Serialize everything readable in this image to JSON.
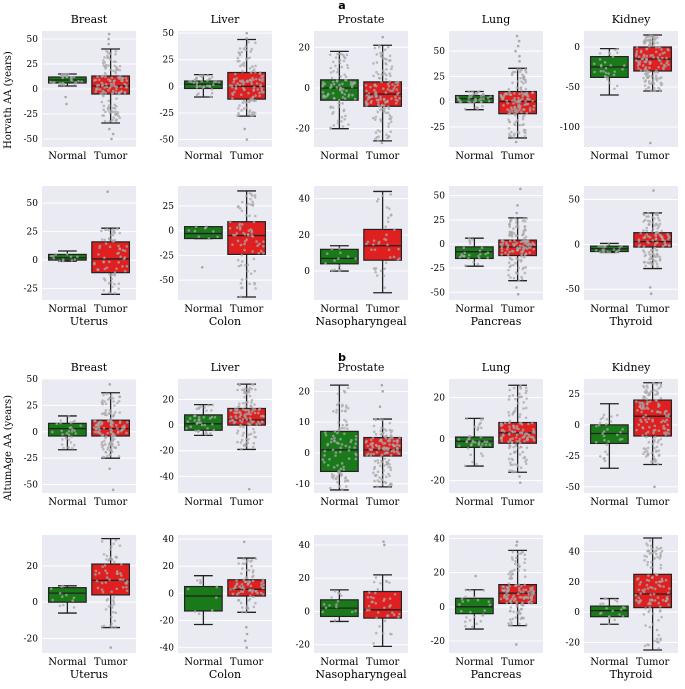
{
  "figure": {
    "label_a": "a",
    "label_b": "b",
    "ylabel_a": "Horvath AA (years)",
    "ylabel_b": "AltumAge AA (years)",
    "colors": {
      "normal": "#1a7a1a",
      "tumor": "#e02020",
      "background": "#eaeaf2",
      "grid": "#ffffff",
      "points": "#a8a8a8"
    }
  },
  "chart_data": [
    {
      "type": "box",
      "section": "a",
      "title": "Breast",
      "title_pos": "top",
      "categories": [
        "Normal",
        "Tumor"
      ],
      "ylim": [
        -58,
        58
      ],
      "yticks": [
        -50,
        -25,
        0,
        25,
        50
      ],
      "series": [
        {
          "name": "Normal",
          "q1": 6,
          "median": 9,
          "q3": 12,
          "whisker_low": 3,
          "whisker_high": 15,
          "n": 30,
          "outliers": [
            -15,
            -8
          ]
        },
        {
          "name": "Tumor",
          "q1": -5,
          "median": 3,
          "q3": 13,
          "whisker_low": -34,
          "whisker_high": 40,
          "n": 300,
          "outliers": [
            -50,
            -45,
            -40,
            45,
            50,
            55
          ]
        }
      ]
    },
    {
      "type": "box",
      "section": "a",
      "title": "Liver",
      "title_pos": "top",
      "categories": [
        "Normal",
        "Tumor"
      ],
      "ylim": [
        -57,
        52
      ],
      "yticks": [
        -50,
        -25,
        0,
        25,
        50
      ],
      "series": [
        {
          "name": "Normal",
          "q1": -2,
          "median": 2,
          "q3": 5,
          "whisker_low": -10,
          "whisker_high": 11,
          "n": 40,
          "outliers": []
        },
        {
          "name": "Tumor",
          "q1": -12,
          "median": 0,
          "q3": 13,
          "whisker_low": -28,
          "whisker_high": 44,
          "n": 120,
          "outliers": [
            -50,
            -40,
            45,
            50
          ]
        }
      ]
    },
    {
      "type": "box",
      "section": "a",
      "title": "Prostate",
      "title_pos": "top",
      "categories": [
        "Normal",
        "Tumor"
      ],
      "ylim": [
        -29,
        28
      ],
      "yticks": [
        -20,
        0,
        20
      ],
      "series": [
        {
          "name": "Normal",
          "q1": -6,
          "median": 0,
          "q3": 4,
          "whisker_low": -20,
          "whisker_high": 18,
          "n": 100,
          "outliers": []
        },
        {
          "name": "Tumor",
          "q1": -9,
          "median": -3,
          "q3": 3,
          "whisker_low": -26,
          "whisker_high": 21,
          "n": 150,
          "outliers": [
            -27,
            25
          ]
        }
      ]
    },
    {
      "type": "box",
      "section": "a",
      "title": "Lung",
      "title_pos": "top",
      "categories": [
        "Normal",
        "Tumor"
      ],
      "ylim": [
        -45,
        70
      ],
      "yticks": [
        -25,
        0,
        25,
        50
      ],
      "series": [
        {
          "name": "Normal",
          "q1": -1,
          "median": 3,
          "q3": 6,
          "whisker_low": -8,
          "whisker_high": 10,
          "n": 40,
          "outliers": []
        },
        {
          "name": "Tumor",
          "q1": -12,
          "median": 0,
          "q3": 10,
          "whisker_low": -36,
          "whisker_high": 33,
          "n": 200,
          "outliers": [
            -40,
            40,
            45,
            50,
            55,
            60,
            65
          ]
        }
      ]
    },
    {
      "type": "box",
      "section": "a",
      "title": "Kidney",
      "title_pos": "top",
      "categories": [
        "Normal",
        "Tumor"
      ],
      "ylim": [
        -125,
        20
      ],
      "yticks": [
        -100,
        -50,
        0
      ],
      "series": [
        {
          "name": "Normal",
          "q1": -38,
          "median": -25,
          "q3": -12,
          "whisker_low": -60,
          "whisker_high": -2,
          "n": 30,
          "outliers": []
        },
        {
          "name": "Tumor",
          "q1": -30,
          "median": -15,
          "q3": 0,
          "whisker_low": -55,
          "whisker_high": 15,
          "n": 150,
          "outliers": [
            -120
          ]
        }
      ]
    },
    {
      "type": "box",
      "section": "a",
      "title": "Uterus",
      "title_pos": "bottom",
      "categories": [
        "Normal",
        "Tumor"
      ],
      "ylim": [
        -35,
        65
      ],
      "yticks": [
        -25,
        0,
        25,
        50
      ],
      "series": [
        {
          "name": "Normal",
          "q1": 0,
          "median": 2,
          "q3": 5,
          "whisker_low": -1,
          "whisker_high": 8,
          "n": 12,
          "outliers": []
        },
        {
          "name": "Tumor",
          "q1": -11,
          "median": 1,
          "q3": 16,
          "whisker_low": -30,
          "whisker_high": 28,
          "n": 70,
          "outliers": [
            60
          ]
        }
      ]
    },
    {
      "type": "box",
      "section": "a",
      "title": "Colon",
      "title_pos": "bottom",
      "categories": [
        "Normal",
        "Tumor"
      ],
      "ylim": [
        -70,
        45
      ],
      "yticks": [
        -50,
        -25,
        0,
        25
      ],
      "series": [
        {
          "name": "Normal",
          "q1": -8,
          "median": -3,
          "q3": 4,
          "whisker_low": -8,
          "whisker_high": 4,
          "n": 10,
          "outliers": [
            -37
          ]
        },
        {
          "name": "Tumor",
          "q1": -24,
          "median": -5,
          "q3": 9,
          "whisker_low": -67,
          "whisker_high": 40,
          "n": 80,
          "outliers": []
        }
      ]
    },
    {
      "type": "box",
      "section": "a",
      "title": "Nasopharyngeal",
      "title_pos": "bottom",
      "categories": [
        "Normal",
        "Tumor"
      ],
      "ylim": [
        -16,
        47
      ],
      "yticks": [
        0,
        20,
        40
      ],
      "series": [
        {
          "name": "Normal",
          "q1": 4,
          "median": 7,
          "q3": 12,
          "whisker_low": 0,
          "whisker_high": 14,
          "n": 15,
          "outliers": []
        },
        {
          "name": "Tumor",
          "q1": 6,
          "median": 14,
          "q3": 23,
          "whisker_low": -12,
          "whisker_high": 44,
          "n": 40,
          "outliers": []
        }
      ]
    },
    {
      "type": "box",
      "section": "a",
      "title": "Pancreas",
      "title_pos": "bottom",
      "categories": [
        "Normal",
        "Tumor"
      ],
      "ylim": [
        -58,
        60
      ],
      "yticks": [
        -50,
        -25,
        0,
        25,
        50
      ],
      "series": [
        {
          "name": "Normal",
          "q1": -15,
          "median": -8,
          "q3": -3,
          "whisker_low": -23,
          "whisker_high": 6,
          "n": 25,
          "outliers": []
        },
        {
          "name": "Tumor",
          "q1": -12,
          "median": -3,
          "q3": 4,
          "whisker_low": -38,
          "whisker_high": 27,
          "n": 180,
          "outliers": [
            -52,
            -45,
            32,
            40,
            57
          ]
        }
      ]
    },
    {
      "type": "box",
      "section": "a",
      "title": "Thyroid",
      "title_pos": "bottom",
      "categories": [
        "Normal",
        "Tumor"
      ],
      "ylim": [
        -62,
        65
      ],
      "yticks": [
        -50,
        0,
        50
      ],
      "series": [
        {
          "name": "Normal",
          "q1": -8,
          "median": -5,
          "q3": -2,
          "whisker_low": -9,
          "whisker_high": 1,
          "n": 20,
          "outliers": []
        },
        {
          "name": "Tumor",
          "q1": -3,
          "median": 3,
          "q3": 13,
          "whisker_low": -27,
          "whisker_high": 35,
          "n": 120,
          "outliers": [
            -55,
            -48,
            60
          ]
        }
      ]
    },
    {
      "type": "box",
      "section": "b",
      "title": "Breast",
      "title_pos": "top",
      "categories": [
        "Normal",
        "Tumor"
      ],
      "ylim": [
        -58,
        50
      ],
      "yticks": [
        -50,
        -25,
        0,
        25,
        50
      ],
      "series": [
        {
          "name": "Normal",
          "q1": -4,
          "median": 3,
          "q3": 8,
          "whisker_low": -17,
          "whisker_high": 15,
          "n": 30,
          "outliers": [
            -15
          ]
        },
        {
          "name": "Tumor",
          "q1": -4,
          "median": 3,
          "q3": 11,
          "whisker_low": -25,
          "whisker_high": 37,
          "n": 300,
          "outliers": [
            -35,
            -55,
            45
          ]
        }
      ]
    },
    {
      "type": "box",
      "section": "b",
      "title": "Liver",
      "title_pos": "top",
      "categories": [
        "Normal",
        "Tumor"
      ],
      "ylim": [
        -53,
        36
      ],
      "yticks": [
        -40,
        -20,
        0,
        20
      ],
      "series": [
        {
          "name": "Normal",
          "q1": -4,
          "median": 1,
          "q3": 8,
          "whisker_low": -8,
          "whisker_high": 16,
          "n": 40,
          "outliers": []
        },
        {
          "name": "Tumor",
          "q1": 0,
          "median": 4,
          "q3": 13,
          "whisker_low": -19,
          "whisker_high": 32,
          "n": 120,
          "outliers": [
            -50
          ]
        }
      ]
    },
    {
      "type": "box",
      "section": "b",
      "title": "Prostate",
      "title_pos": "top",
      "categories": [
        "Normal",
        "Tumor"
      ],
      "ylim": [
        -13,
        24
      ],
      "yticks": [
        -10,
        0,
        10,
        20
      ],
      "series": [
        {
          "name": "Normal",
          "q1": -6,
          "median": 1,
          "q3": 7,
          "whisker_low": -12,
          "whisker_high": 22,
          "n": 100,
          "outliers": []
        },
        {
          "name": "Tumor",
          "q1": -1,
          "median": 1,
          "q3": 5,
          "whisker_low": -11,
          "whisker_high": 11,
          "n": 150,
          "outliers": [
            15,
            20,
            22
          ]
        }
      ]
    },
    {
      "type": "box",
      "section": "b",
      "title": "Lung",
      "title_pos": "top",
      "categories": [
        "Normal",
        "Tumor"
      ],
      "ylim": [
        -26,
        29
      ],
      "yticks": [
        -20,
        0,
        20
      ],
      "series": [
        {
          "name": "Normal",
          "q1": -4,
          "median": -1,
          "q3": 1,
          "whisker_low": -13,
          "whisker_high": 10,
          "n": 40,
          "outliers": []
        },
        {
          "name": "Tumor",
          "q1": -2,
          "median": 3,
          "q3": 8,
          "whisker_low": -16,
          "whisker_high": 26,
          "n": 200,
          "outliers": [
            -21,
            -18
          ]
        }
      ]
    },
    {
      "type": "box",
      "section": "b",
      "title": "Kidney",
      "title_pos": "top",
      "categories": [
        "Normal",
        "Tumor"
      ],
      "ylim": [
        -55,
        37
      ],
      "yticks": [
        -50,
        -25,
        0,
        25
      ],
      "series": [
        {
          "name": "Normal",
          "q1": -15,
          "median": -7,
          "q3": 0,
          "whisker_low": -35,
          "whisker_high": 17,
          "n": 30,
          "outliers": []
        },
        {
          "name": "Tumor",
          "q1": -9,
          "median": 7,
          "q3": 20,
          "whisker_low": -32,
          "whisker_high": 34,
          "n": 150,
          "outliers": [
            -50
          ]
        }
      ]
    },
    {
      "type": "box",
      "section": "b",
      "title": "Uterus",
      "title_pos": "bottom",
      "categories": [
        "Normal",
        "Tumor"
      ],
      "ylim": [
        -28,
        37
      ],
      "yticks": [
        -20,
        0,
        20
      ],
      "series": [
        {
          "name": "Normal",
          "q1": 0,
          "median": 5,
          "q3": 8,
          "whisker_low": -6,
          "whisker_high": 9,
          "n": 12,
          "outliers": []
        },
        {
          "name": "Tumor",
          "q1": 4,
          "median": 12,
          "q3": 21,
          "whisker_low": -14,
          "whisker_high": 35,
          "n": 70,
          "outliers": [
            -25
          ]
        }
      ]
    },
    {
      "type": "box",
      "section": "b",
      "title": "Colon",
      "title_pos": "bottom",
      "categories": [
        "Normal",
        "Tumor"
      ],
      "ylim": [
        -44,
        43
      ],
      "yticks": [
        -40,
        -20,
        0,
        20,
        40
      ],
      "series": [
        {
          "name": "Normal",
          "q1": -13,
          "median": -2,
          "q3": 5,
          "whisker_low": -23,
          "whisker_high": 13,
          "n": 10,
          "outliers": []
        },
        {
          "name": "Tumor",
          "q1": -2,
          "median": 3,
          "q3": 10,
          "whisker_low": -14,
          "whisker_high": 26,
          "n": 80,
          "outliers": [
            -40,
            -35,
            -30,
            -25,
            38
          ]
        }
      ]
    },
    {
      "type": "box",
      "section": "b",
      "title": "Nasopharyngeal",
      "title_pos": "bottom",
      "categories": [
        "Normal",
        "Tumor"
      ],
      "ylim": [
        -25,
        46
      ],
      "yticks": [
        -20,
        0,
        20,
        40
      ],
      "series": [
        {
          "name": "Normal",
          "q1": -3,
          "median": 2,
          "q3": 7,
          "whisker_low": -6,
          "whisker_high": 13,
          "n": 15,
          "outliers": []
        },
        {
          "name": "Tumor",
          "q1": -4,
          "median": 1,
          "q3": 12,
          "whisker_low": -21,
          "whisker_high": 22,
          "n": 40,
          "outliers": [
            40,
            42
          ]
        }
      ]
    },
    {
      "type": "box",
      "section": "b",
      "title": "Pancreas",
      "title_pos": "bottom",
      "categories": [
        "Normal",
        "Tumor"
      ],
      "ylim": [
        -27,
        42
      ],
      "yticks": [
        -20,
        0,
        20,
        40
      ],
      "series": [
        {
          "name": "Normal",
          "q1": -4,
          "median": 0,
          "q3": 5,
          "whisker_low": -13,
          "whisker_high": 10,
          "n": 25,
          "outliers": [
            18
          ]
        },
        {
          "name": "Tumor",
          "q1": 2,
          "median": 8,
          "q3": 13,
          "whisker_low": -11,
          "whisker_high": 33,
          "n": 180,
          "outliers": [
            -22,
            36,
            38
          ]
        }
      ]
    },
    {
      "type": "box",
      "section": "b",
      "title": "Thyroid",
      "title_pos": "bottom",
      "categories": [
        "Normal",
        "Tumor"
      ],
      "ylim": [
        -27,
        51
      ],
      "yticks": [
        -20,
        0,
        20,
        40
      ],
      "series": [
        {
          "name": "Normal",
          "q1": -3,
          "median": 1,
          "q3": 4,
          "whisker_low": -8,
          "whisker_high": 9,
          "n": 20,
          "outliers": []
        },
        {
          "name": "Tumor",
          "q1": 3,
          "median": 12,
          "q3": 25,
          "whisker_low": -25,
          "whisker_high": 49,
          "n": 120,
          "outliers": []
        }
      ]
    }
  ]
}
